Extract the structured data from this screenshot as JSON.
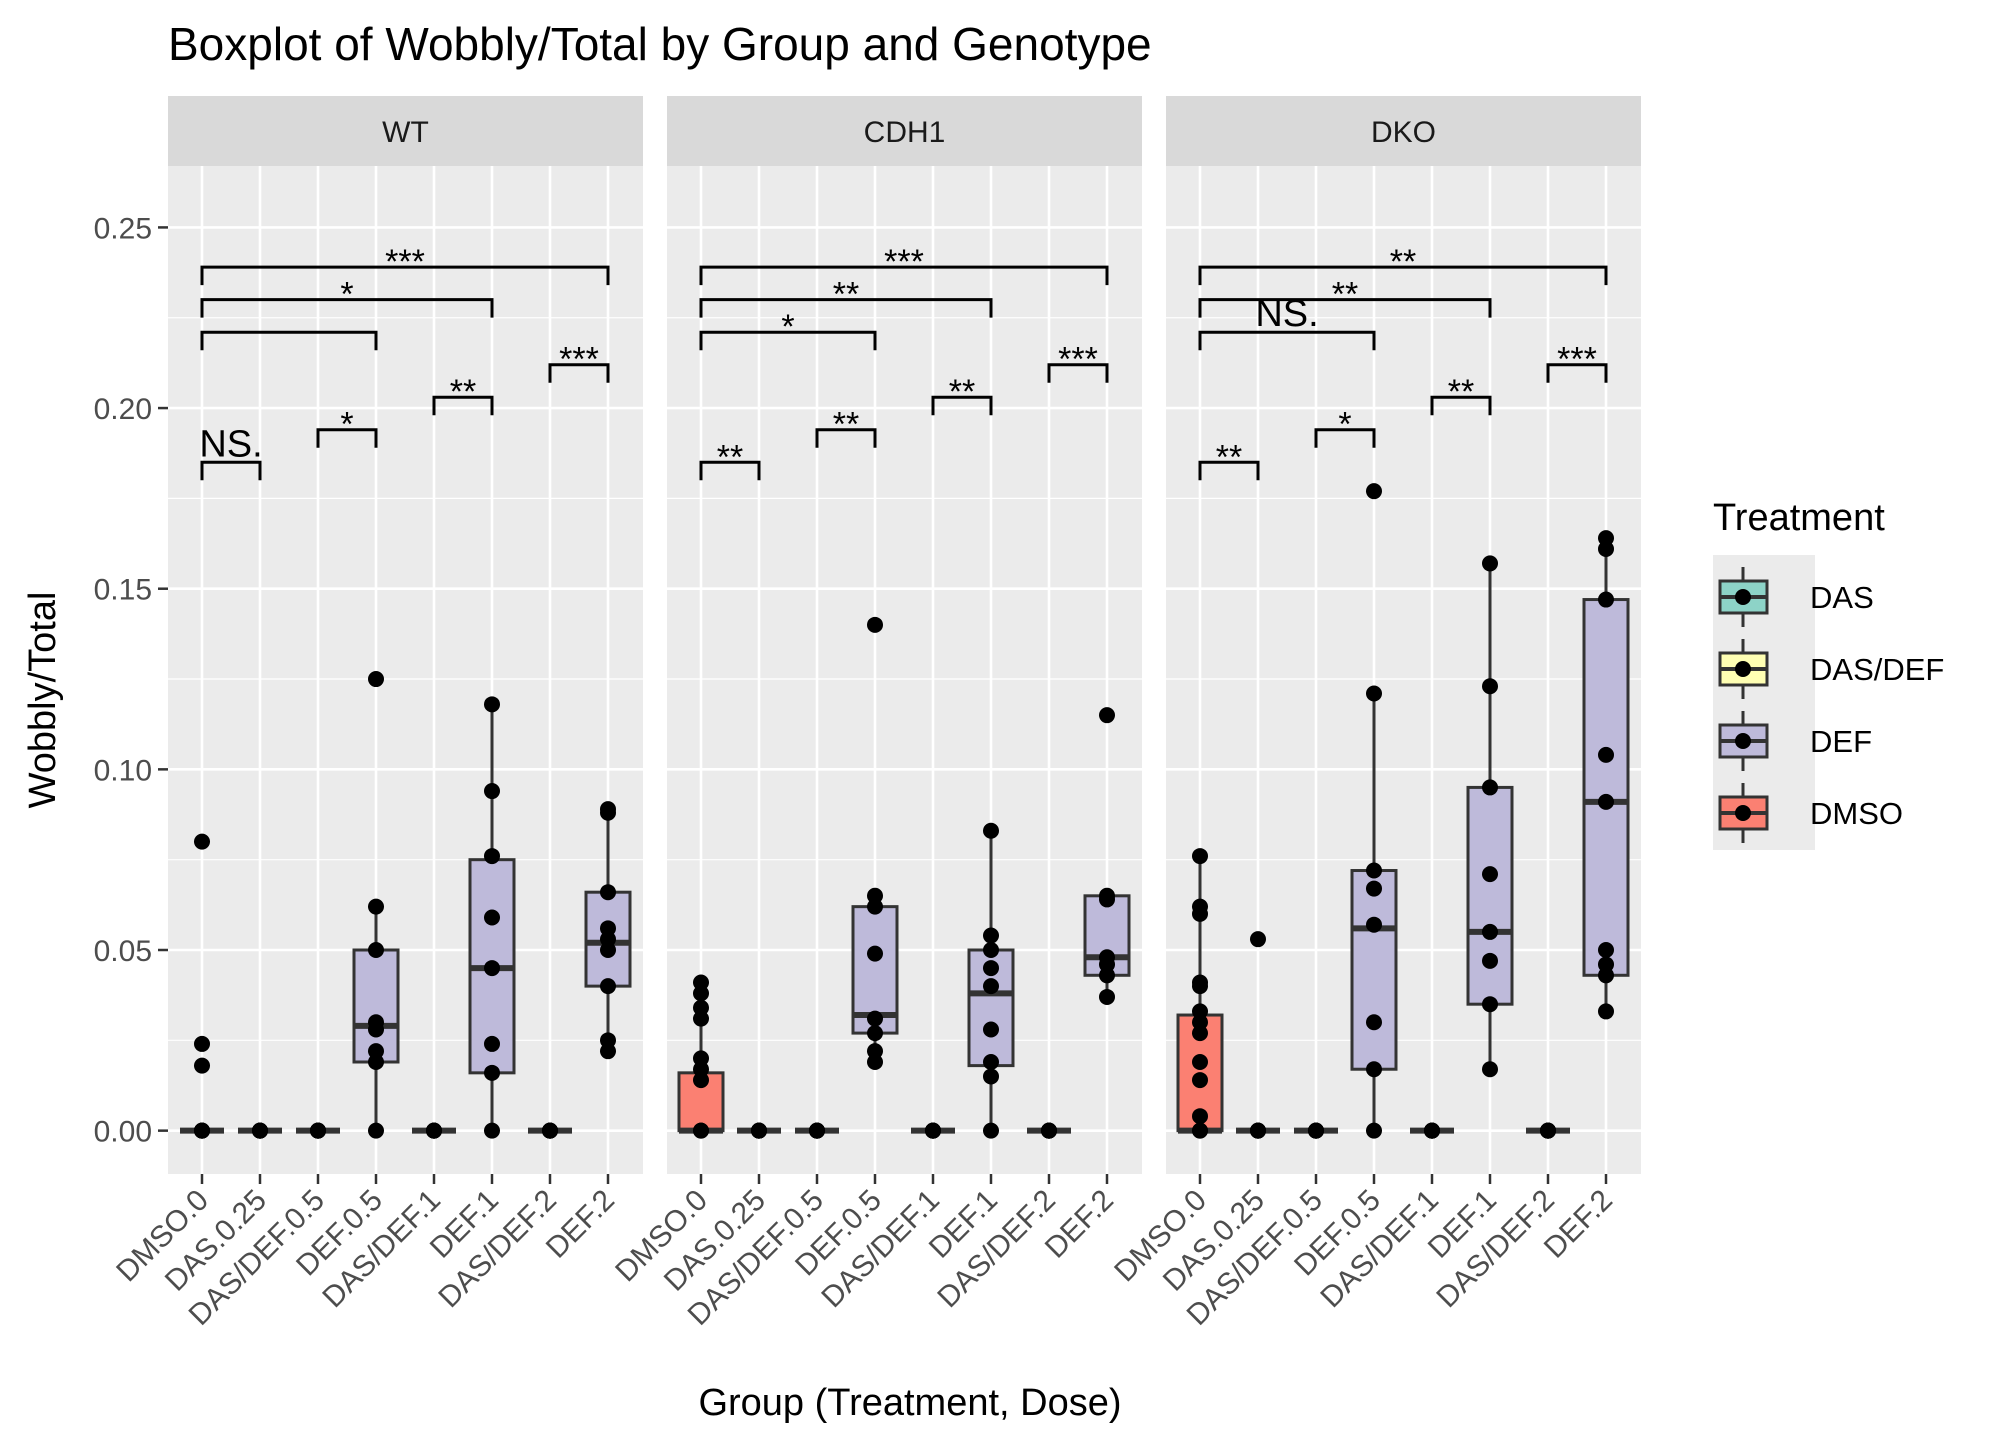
{
  "chart_data": {
    "type": "boxplot",
    "title": "Boxplot of Wobbly/Total by Group and Genotype",
    "xlabel": "Group (Treatment, Dose)",
    "ylabel": "Wobbly/Total",
    "ylim": [
      -0.012,
      0.267
    ],
    "yticks": [
      {
        "value": 0,
        "label": "0.00"
      },
      {
        "value": 0.05,
        "label": "0.05"
      },
      {
        "value": 0.1,
        "label": "0.10"
      },
      {
        "value": 0.15,
        "label": "0.15"
      },
      {
        "value": 0.2,
        "label": "0.20"
      },
      {
        "value": 0.25,
        "label": "0.25"
      }
    ],
    "categories": [
      "DMSO.0",
      "DAS.0.25",
      "DAS/DEF.0.5",
      "DEF.0.5",
      "DAS/DEF.1",
      "DEF.1",
      "DAS/DEF.2",
      "DEF.2"
    ],
    "category_treatment": [
      "DMSO",
      "DAS",
      "DAS/DEF",
      "DEF",
      "DAS/DEF",
      "DEF",
      "DAS/DEF",
      "DEF"
    ],
    "grid": true,
    "legend": {
      "title": "Treatment",
      "position": "right",
      "items": [
        {
          "label": "DAS",
          "color": "#8dd3c7"
        },
        {
          "label": "DAS/DEF",
          "color": "#ffffb3"
        },
        {
          "label": "DEF",
          "color": "#bebada"
        },
        {
          "label": "DMSO",
          "color": "#fb8072"
        }
      ]
    },
    "comparisons": [
      {
        "from": 0,
        "to": 1,
        "level": 0.185
      },
      {
        "from": 2,
        "to": 3,
        "level": 0.194
      },
      {
        "from": 4,
        "to": 5,
        "level": 0.203
      },
      {
        "from": 6,
        "to": 7,
        "level": 0.212
      },
      {
        "from": 0,
        "to": 3,
        "level": 0.221
      },
      {
        "from": 0,
        "to": 5,
        "level": 0.23
      },
      {
        "from": 0,
        "to": 7,
        "level": 0.239
      }
    ],
    "facets": [
      {
        "name": "WT",
        "boxes": [
          {
            "q1": 0,
            "median": 0,
            "q3": 0,
            "whisker_low": 0,
            "whisker_high": 0,
            "points": [
              0,
              0,
              0,
              0,
              0,
              0.018,
              0.024,
              0.08
            ]
          },
          {
            "q1": 0,
            "median": 0,
            "q3": 0,
            "whisker_low": 0,
            "whisker_high": 0,
            "points": [
              0,
              0,
              0,
              0,
              0,
              0
            ]
          },
          {
            "q1": 0,
            "median": 0,
            "q3": 0,
            "whisker_low": 0,
            "whisker_high": 0,
            "points": [
              0,
              0,
              0,
              0,
              0,
              0
            ]
          },
          {
            "q1": 0.019,
            "median": 0.029,
            "q3": 0.05,
            "whisker_low": 0,
            "whisker_high": 0.062,
            "points": [
              0,
              0.019,
              0.022,
              0.028,
              0.03,
              0.05,
              0.062,
              0.125
            ]
          },
          {
            "q1": 0,
            "median": 0,
            "q3": 0,
            "whisker_low": 0,
            "whisker_high": 0,
            "points": [
              0,
              0,
              0,
              0,
              0,
              0
            ]
          },
          {
            "q1": 0.016,
            "median": 0.045,
            "q3": 0.075,
            "whisker_low": 0,
            "whisker_high": 0.118,
            "points": [
              0,
              0.016,
              0.024,
              0.045,
              0.059,
              0.076,
              0.094,
              0.118
            ]
          },
          {
            "q1": 0,
            "median": 0,
            "q3": 0,
            "whisker_low": 0,
            "whisker_high": 0,
            "points": [
              0,
              0,
              0,
              0,
              0,
              0
            ]
          },
          {
            "q1": 0.04,
            "median": 0.052,
            "q3": 0.066,
            "whisker_low": 0.022,
            "whisker_high": 0.089,
            "points": [
              0.022,
              0.025,
              0.04,
              0.05,
              0.053,
              0.056,
              0.066,
              0.088,
              0.089
            ]
          }
        ],
        "significance": [
          "NS.",
          "*",
          "**",
          "***",
          "",
          "*",
          "***"
        ]
      },
      {
        "name": "CDH1",
        "boxes": [
          {
            "q1": 0,
            "median": 0,
            "q3": 0.016,
            "whisker_low": 0,
            "whisker_high": 0.041,
            "points": [
              0,
              0,
              0.014,
              0.017,
              0.02,
              0.031,
              0.034,
              0.038,
              0.041
            ]
          },
          {
            "q1": 0,
            "median": 0,
            "q3": 0,
            "whisker_low": 0,
            "whisker_high": 0,
            "points": [
              0,
              0,
              0,
              0,
              0,
              0
            ]
          },
          {
            "q1": 0,
            "median": 0,
            "q3": 0,
            "whisker_low": 0,
            "whisker_high": 0,
            "points": [
              0,
              0,
              0,
              0,
              0,
              0
            ]
          },
          {
            "q1": 0.027,
            "median": 0.032,
            "q3": 0.062,
            "whisker_low": 0.019,
            "whisker_high": 0.065,
            "points": [
              0.019,
              0.022,
              0.027,
              0.031,
              0.049,
              0.062,
              0.065,
              0.14
            ]
          },
          {
            "q1": 0,
            "median": 0,
            "q3": 0,
            "whisker_low": 0,
            "whisker_high": 0,
            "points": [
              0,
              0,
              0,
              0,
              0,
              0
            ]
          },
          {
            "q1": 0.018,
            "median": 0.038,
            "q3": 0.05,
            "whisker_low": 0,
            "whisker_high": 0.083,
            "points": [
              0,
              0.015,
              0.019,
              0.028,
              0.04,
              0.045,
              0.05,
              0.054,
              0.083
            ]
          },
          {
            "q1": 0,
            "median": 0,
            "q3": 0,
            "whisker_low": 0,
            "whisker_high": 0,
            "points": [
              0,
              0,
              0,
              0,
              0,
              0
            ]
          },
          {
            "q1": 0.043,
            "median": 0.048,
            "q3": 0.065,
            "whisker_low": 0.037,
            "whisker_high": 0.065,
            "points": [
              0.037,
              0.043,
              0.046,
              0.048,
              0.064,
              0.065,
              0.115
            ]
          }
        ],
        "significance": [
          "**",
          "**",
          "**",
          "***",
          "*",
          "**",
          "***"
        ]
      },
      {
        "name": "DKO",
        "boxes": [
          {
            "q1": 0,
            "median": 0,
            "q3": 0.032,
            "whisker_low": 0,
            "whisker_high": 0.076,
            "points": [
              0,
              0,
              0.004,
              0.014,
              0.019,
              0.027,
              0.03,
              0.033,
              0.04,
              0.041,
              0.06,
              0.062,
              0.076
            ]
          },
          {
            "q1": 0,
            "median": 0,
            "q3": 0,
            "whisker_low": 0,
            "whisker_high": 0,
            "points": [
              0,
              0,
              0,
              0,
              0,
              0.053
            ]
          },
          {
            "q1": 0,
            "median": 0,
            "q3": 0,
            "whisker_low": 0,
            "whisker_high": 0,
            "points": [
              0,
              0,
              0,
              0,
              0,
              0
            ]
          },
          {
            "q1": 0.017,
            "median": 0.056,
            "q3": 0.072,
            "whisker_low": 0,
            "whisker_high": 0.121,
            "points": [
              0,
              0.017,
              0.03,
              0.057,
              0.067,
              0.072,
              0.121,
              0.177
            ]
          },
          {
            "q1": 0,
            "median": 0,
            "q3": 0,
            "whisker_low": 0,
            "whisker_high": 0,
            "points": [
              0,
              0,
              0,
              0,
              0,
              0
            ]
          },
          {
            "q1": 0.035,
            "median": 0.055,
            "q3": 0.095,
            "whisker_low": 0.017,
            "whisker_high": 0.157,
            "points": [
              0.017,
              0.035,
              0.047,
              0.055,
              0.071,
              0.095,
              0.123,
              0.157
            ]
          },
          {
            "q1": 0,
            "median": 0,
            "q3": 0,
            "whisker_low": 0,
            "whisker_high": 0,
            "points": [
              0,
              0,
              0,
              0,
              0,
              0
            ]
          },
          {
            "q1": 0.043,
            "median": 0.091,
            "q3": 0.147,
            "whisker_low": 0.033,
            "whisker_high": 0.165,
            "points": [
              0.033,
              0.043,
              0.046,
              0.05,
              0.091,
              0.104,
              0.147,
              0.161,
              0.164
            ]
          }
        ],
        "significance": [
          "**",
          "*",
          "**",
          "***",
          "NS.",
          "**",
          "**"
        ]
      }
    ]
  }
}
